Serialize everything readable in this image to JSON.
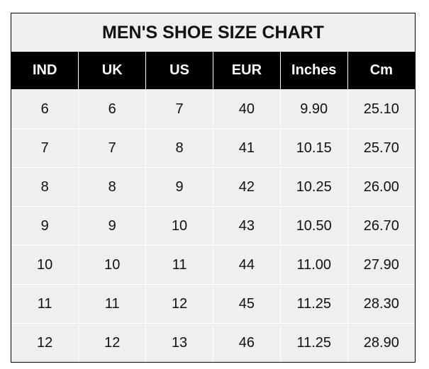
{
  "title": "MEN'S SHOE SIZE CHART",
  "headers": [
    "IND",
    "UK",
    "US",
    "EUR",
    "Inches",
    "Cm"
  ],
  "rows": [
    [
      "6",
      "6",
      "7",
      "40",
      "9.90",
      "25.10"
    ],
    [
      "7",
      "7",
      "8",
      "41",
      "10.15",
      "25.70"
    ],
    [
      "8",
      "8",
      "9",
      "42",
      "10.25",
      "26.00"
    ],
    [
      "9",
      "9",
      "10",
      "43",
      "10.50",
      "26.70"
    ],
    [
      "10",
      "10",
      "11",
      "44",
      "11.00",
      "27.90"
    ],
    [
      "11",
      "11",
      "12",
      "45",
      "11.25",
      "28.30"
    ],
    [
      "12",
      "12",
      "13",
      "46",
      "11.25",
      "28.90"
    ]
  ],
  "colors": {
    "header_bg": "#000000",
    "cell_bg": "#efefef"
  }
}
